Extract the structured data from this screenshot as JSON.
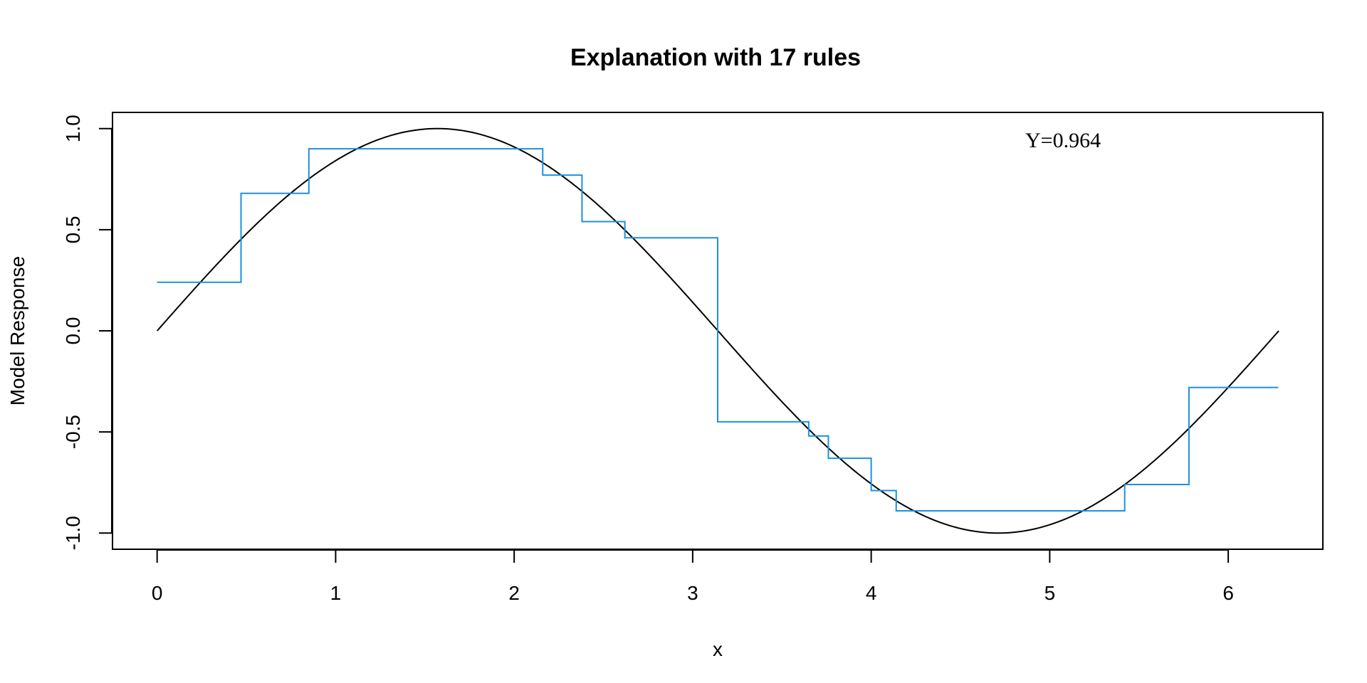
{
  "chart_data": {
    "type": "line",
    "title": "Explanation with 17 rules",
    "xlabel": "x",
    "ylabel": "Model Response",
    "xlim": [
      -0.25,
      6.53
    ],
    "ylim": [
      -1.08,
      1.08
    ],
    "x_ticks": [
      0,
      1,
      2,
      3,
      4,
      5,
      6
    ],
    "y_ticks": [
      -1.0,
      -0.5,
      0.0,
      0.5,
      1.0
    ],
    "x_tick_labels": [
      "0",
      "1",
      "2",
      "3",
      "4",
      "5",
      "6"
    ],
    "y_tick_labels": [
      "-1.0",
      "-0.5",
      "0.0",
      "0.5",
      "1.0"
    ],
    "grid": false,
    "annotation": "Υ=0.964",
    "series": [
      {
        "kind": "curve",
        "function": "sin",
        "x_range": [
          0,
          6.283
        ],
        "color": "#000000"
      },
      {
        "kind": "step",
        "color": "#1E90E0",
        "x": [
          0,
          0.47,
          0.47,
          0.85,
          0.85,
          2.16,
          2.16,
          2.38,
          2.38,
          2.62,
          2.62,
          3.14,
          3.14,
          3.65,
          3.65,
          3.76,
          3.76,
          4.0,
          4.0,
          4.14,
          4.14,
          5.42,
          5.42,
          5.78,
          5.78,
          6.28
        ],
        "y": [
          0.24,
          0.24,
          0.68,
          0.68,
          0.9,
          0.9,
          0.77,
          0.77,
          0.54,
          0.54,
          0.46,
          0.46,
          -0.45,
          -0.45,
          -0.52,
          -0.52,
          -0.63,
          -0.63,
          -0.79,
          -0.79,
          -0.89,
          -0.89,
          -0.76,
          -0.76,
          -0.28,
          -0.28
        ]
      }
    ]
  }
}
